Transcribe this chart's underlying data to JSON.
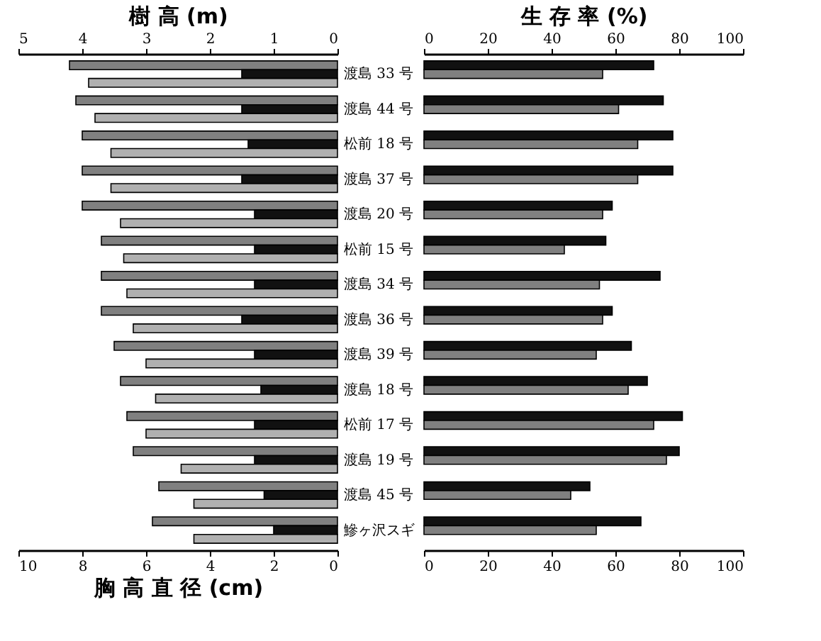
{
  "chart_data": [
    {
      "type": "bar",
      "orientation": "horizontal",
      "categories": [
        "渡島 33 号",
        "渡島 44 号",
        "松前 18 号",
        "渡島 37 号",
        "渡島 20 号",
        "松前 15 号",
        "渡島 34 号",
        "渡島 36 号",
        "渡島 39 号",
        "渡島 18 号",
        "松前 17 号",
        "渡島 19 号",
        "渡島 45 号",
        "鰺ヶ沢スギ"
      ],
      "x2label": "樹 高 (m)",
      "x2lim": [
        5,
        0
      ],
      "x2ticks": [
        5,
        4,
        3,
        2,
        1,
        0
      ],
      "xlabel": "胸 高 直 径 (cm)",
      "xlim": [
        10,
        0
      ],
      "xticks": [
        10,
        8,
        6,
        4,
        2,
        0
      ],
      "series": [
        {
          "color": "#808080",
          "axis": "x2",
          "values": [
            4.2,
            4.1,
            4.0,
            4.0,
            4.0,
            3.7,
            3.7,
            3.7,
            3.5,
            3.4,
            3.3,
            3.2,
            2.8,
            2.9
          ]
        },
        {
          "color": "#111111",
          "axis": "x2",
          "values": [
            1.5,
            1.5,
            1.4,
            1.5,
            1.3,
            1.3,
            1.3,
            1.5,
            1.3,
            1.2,
            1.3,
            1.3,
            1.15,
            1.0
          ]
        },
        {
          "color": "#b0b0b0",
          "values": [
            7.8,
            7.6,
            7.1,
            7.1,
            6.8,
            6.7,
            6.6,
            6.4,
            6.0,
            5.7,
            6.0,
            4.9,
            4.5,
            4.5
          ]
        }
      ]
    },
    {
      "type": "bar",
      "orientation": "horizontal",
      "categories": [
        null,
        null,
        null,
        null,
        null,
        null,
        null,
        null,
        null,
        null,
        null,
        null,
        null,
        null
      ],
      "x2label": "生 存 率 (%)",
      "x2lim": [
        0,
        100
      ],
      "x2ticks": [
        0,
        20,
        40,
        60,
        80,
        100
      ],
      "xlim": [
        0,
        100
      ],
      "xticks": [
        0,
        20,
        40,
        60,
        80,
        100
      ],
      "series": [
        {
          "color": "#111111",
          "values": [
            72,
            75,
            78,
            78,
            59,
            57,
            74,
            59,
            65,
            70,
            81,
            80,
            52,
            68
          ]
        },
        {
          "color": "#808080",
          "values": [
            56,
            61,
            67,
            67,
            56,
            44,
            55,
            56,
            54,
            64,
            72,
            76,
            46,
            54
          ]
        }
      ]
    }
  ]
}
